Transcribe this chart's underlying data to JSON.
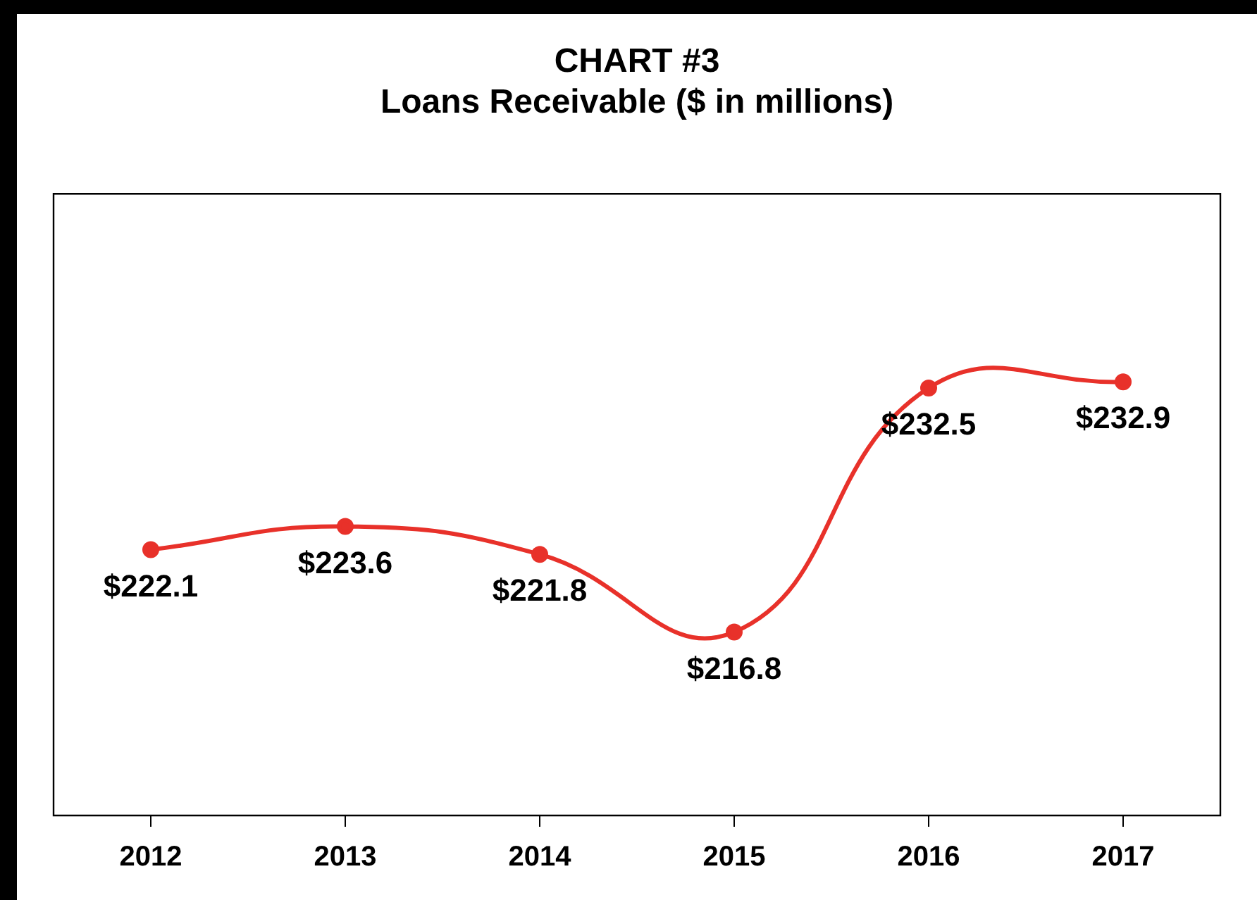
{
  "chart_data": {
    "type": "line",
    "title": "CHART #3",
    "subtitle": "Loans Receivable ($ in millions)",
    "categories": [
      "2012",
      "2013",
      "2014",
      "2015",
      "2016",
      "2017"
    ],
    "series": [
      {
        "color": "#e8312a",
        "values": [
          222.1,
          223.6,
          221.8,
          216.8,
          232.5,
          232.9
        ],
        "value_labels": [
          "$222.1",
          "$223.6",
          "$221.8",
          "$216.8",
          "$232.5",
          "$232.9"
        ]
      }
    ],
    "marker": "circle",
    "line_style": "solid",
    "grid": false,
    "legend": false
  }
}
